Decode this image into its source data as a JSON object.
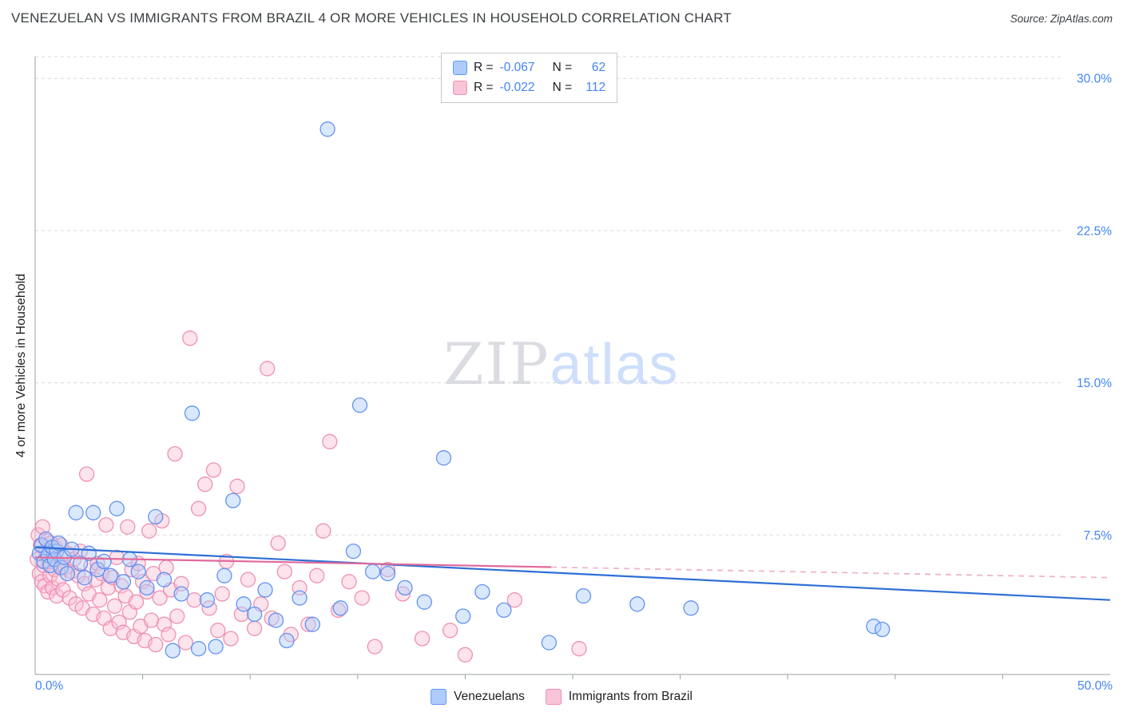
{
  "header": {
    "source": "Source: ZipAtlas.com"
  },
  "watermark": {
    "part1": "ZIP",
    "part2": "atlas"
  },
  "legend_top": {
    "r_label": "R =",
    "n_label": "N ="
  },
  "chart_data": {
    "type": "scatter",
    "title": "VENEZUELAN VS IMMIGRANTS FROM BRAZIL 4 OR MORE VEHICLES IN HOUSEHOLD CORRELATION CHART",
    "xlabel": "",
    "ylabel": "4 or more Vehicles in Household",
    "xlim": [
      0,
      50
    ],
    "ylim": [
      0,
      31
    ],
    "x_tick_step": 5,
    "x_axis_labels": {
      "min": "0.0%",
      "max": "50.0%"
    },
    "yticks": [
      {
        "value": 30,
        "label": "30.0%"
      },
      {
        "value": 22.5,
        "label": "22.5%"
      },
      {
        "value": 15,
        "label": "15.0%"
      },
      {
        "value": 7.5,
        "label": "7.5%"
      }
    ],
    "grid": "horizontal-dashed",
    "legend_position": "top-center",
    "axis_color": "#4285f4",
    "series": [
      {
        "name": "Venezuelans",
        "R": -0.067,
        "N": 62,
        "fill": "#aecbfa",
        "stroke": "#5b8def",
        "trend": {
          "x1": 0,
          "y1": 6.9,
          "x2": 50,
          "y2": 4.3,
          "color": "#2f6fd6",
          "style": "solid"
        },
        "points": [
          [
            0.2,
            6.6
          ],
          [
            0.3,
            7.0
          ],
          [
            0.4,
            6.2
          ],
          [
            0.5,
            7.3
          ],
          [
            0.6,
            6.5
          ],
          [
            0.7,
            6.0
          ],
          [
            0.8,
            6.9
          ],
          [
            0.9,
            6.3
          ],
          [
            1.0,
            6.7
          ],
          [
            1.1,
            7.1
          ],
          [
            1.2,
            5.9
          ],
          [
            1.35,
            6.4
          ],
          [
            1.5,
            5.6
          ],
          [
            1.7,
            6.8
          ],
          [
            1.9,
            8.6
          ],
          [
            2.1,
            6.1
          ],
          [
            2.3,
            5.4
          ],
          [
            2.5,
            6.6
          ],
          [
            2.7,
            8.6
          ],
          [
            2.9,
            5.8
          ],
          [
            3.2,
            6.2
          ],
          [
            3.5,
            5.5
          ],
          [
            3.8,
            8.8
          ],
          [
            4.1,
            5.2
          ],
          [
            4.4,
            6.3
          ],
          [
            4.8,
            5.7
          ],
          [
            5.2,
            4.9
          ],
          [
            5.6,
            8.4
          ],
          [
            6.0,
            5.3
          ],
          [
            6.4,
            1.8
          ],
          [
            6.8,
            4.6
          ],
          [
            7.3,
            13.5
          ],
          [
            7.6,
            1.9
          ],
          [
            8.0,
            4.3
          ],
          [
            8.4,
            2.0
          ],
          [
            8.8,
            5.5
          ],
          [
            9.2,
            9.2
          ],
          [
            9.7,
            4.1
          ],
          [
            10.2,
            3.6
          ],
          [
            10.7,
            4.8
          ],
          [
            11.2,
            3.3
          ],
          [
            11.7,
            2.3
          ],
          [
            12.3,
            4.4
          ],
          [
            12.9,
            3.1
          ],
          [
            13.6,
            27.5
          ],
          [
            14.2,
            3.9
          ],
          [
            14.8,
            6.7
          ],
          [
            15.1,
            13.9
          ],
          [
            15.7,
            5.7
          ],
          [
            16.4,
            5.6
          ],
          [
            17.2,
            4.9
          ],
          [
            18.1,
            4.2
          ],
          [
            19.0,
            11.3
          ],
          [
            19.9,
            3.5
          ],
          [
            20.8,
            4.7
          ],
          [
            21.8,
            3.8
          ],
          [
            23.9,
            2.2
          ],
          [
            25.5,
            4.5
          ],
          [
            28.0,
            4.1
          ],
          [
            30.5,
            3.9
          ],
          [
            39.0,
            3.0
          ],
          [
            39.4,
            2.85
          ]
        ]
      },
      {
        "name": "Immigrants from Brazil",
        "R": -0.022,
        "N": 112,
        "fill": "#f8c0d4",
        "stroke": "#ee8ab0",
        "trend": {
          "x1": 0,
          "y1": 6.4,
          "x2": 50,
          "y2": 5.4,
          "color": "#e06a9b",
          "style": "solid-then-dashed",
          "solid_until": 24
        },
        "points": [
          [
            0.1,
            6.3
          ],
          [
            0.15,
            7.5
          ],
          [
            0.2,
            5.6
          ],
          [
            0.25,
            7.0
          ],
          [
            0.3,
            5.2
          ],
          [
            0.35,
            7.9
          ],
          [
            0.4,
            6.0
          ],
          [
            0.45,
            5.0
          ],
          [
            0.5,
            6.7
          ],
          [
            0.55,
            7.2
          ],
          [
            0.6,
            4.7
          ],
          [
            0.65,
            6.2
          ],
          [
            0.7,
            5.5
          ],
          [
            0.75,
            7.1
          ],
          [
            0.8,
            4.9
          ],
          [
            0.85,
            6.5
          ],
          [
            0.9,
            5.8
          ],
          [
            0.95,
            6.9
          ],
          [
            1.0,
            4.5
          ],
          [
            1.05,
            6.1
          ],
          [
            1.1,
            5.3
          ],
          [
            1.2,
            7.0
          ],
          [
            1.3,
            4.8
          ],
          [
            1.4,
            5.9
          ],
          [
            1.5,
            6.6
          ],
          [
            1.6,
            4.4
          ],
          [
            1.7,
            5.7
          ],
          [
            1.8,
            6.3
          ],
          [
            1.9,
            4.1
          ],
          [
            2.0,
            5.5
          ],
          [
            2.1,
            6.7
          ],
          [
            2.2,
            3.9
          ],
          [
            2.3,
            5.1
          ],
          [
            2.4,
            10.5
          ],
          [
            2.5,
            4.6
          ],
          [
            2.6,
            6.0
          ],
          [
            2.7,
            3.6
          ],
          [
            2.8,
            5.3
          ],
          [
            2.9,
            6.1
          ],
          [
            3.0,
            4.3
          ],
          [
            3.1,
            5.6
          ],
          [
            3.2,
            3.4
          ],
          [
            3.3,
            8.0
          ],
          [
            3.4,
            4.9
          ],
          [
            3.5,
            2.9
          ],
          [
            3.6,
            5.4
          ],
          [
            3.7,
            4.0
          ],
          [
            3.8,
            6.4
          ],
          [
            3.9,
            3.2
          ],
          [
            4.0,
            5.0
          ],
          [
            4.1,
            2.7
          ],
          [
            4.2,
            4.5
          ],
          [
            4.3,
            7.9
          ],
          [
            4.4,
            3.7
          ],
          [
            4.5,
            5.8
          ],
          [
            4.6,
            2.5
          ],
          [
            4.7,
            4.2
          ],
          [
            4.8,
            6.1
          ],
          [
            4.9,
            3.0
          ],
          [
            5.0,
            5.2
          ],
          [
            5.1,
            2.3
          ],
          [
            5.2,
            4.7
          ],
          [
            5.3,
            7.7
          ],
          [
            5.4,
            3.3
          ],
          [
            5.5,
            5.6
          ],
          [
            5.6,
            2.1
          ],
          [
            5.8,
            4.4
          ],
          [
            5.9,
            8.2
          ],
          [
            6.0,
            3.1
          ],
          [
            6.1,
            5.9
          ],
          [
            6.2,
            2.6
          ],
          [
            6.3,
            4.8
          ],
          [
            6.5,
            11.5
          ],
          [
            6.6,
            3.5
          ],
          [
            6.8,
            5.1
          ],
          [
            7.0,
            2.2
          ],
          [
            7.2,
            17.2
          ],
          [
            7.4,
            4.3
          ],
          [
            7.6,
            8.8
          ],
          [
            7.9,
            10.0
          ],
          [
            8.1,
            3.9
          ],
          [
            8.3,
            10.7
          ],
          [
            8.5,
            2.8
          ],
          [
            8.7,
            4.6
          ],
          [
            8.9,
            6.2
          ],
          [
            9.1,
            2.4
          ],
          [
            9.4,
            9.9
          ],
          [
            9.6,
            3.6
          ],
          [
            9.9,
            5.3
          ],
          [
            10.2,
            2.9
          ],
          [
            10.5,
            4.1
          ],
          [
            10.8,
            15.7
          ],
          [
            11.0,
            3.4
          ],
          [
            11.3,
            7.1
          ],
          [
            11.6,
            5.7
          ],
          [
            11.9,
            2.6
          ],
          [
            12.3,
            4.9
          ],
          [
            12.7,
            3.1
          ],
          [
            13.1,
            5.5
          ],
          [
            13.4,
            7.7
          ],
          [
            13.7,
            12.1
          ],
          [
            14.1,
            3.8
          ],
          [
            14.6,
            5.2
          ],
          [
            15.2,
            4.4
          ],
          [
            15.8,
            2.0
          ],
          [
            16.4,
            5.8
          ],
          [
            17.1,
            4.6
          ],
          [
            18.0,
            2.4
          ],
          [
            19.3,
            2.8
          ],
          [
            20.0,
            1.6
          ],
          [
            22.3,
            4.3
          ],
          [
            25.3,
            1.9
          ]
        ]
      }
    ]
  }
}
